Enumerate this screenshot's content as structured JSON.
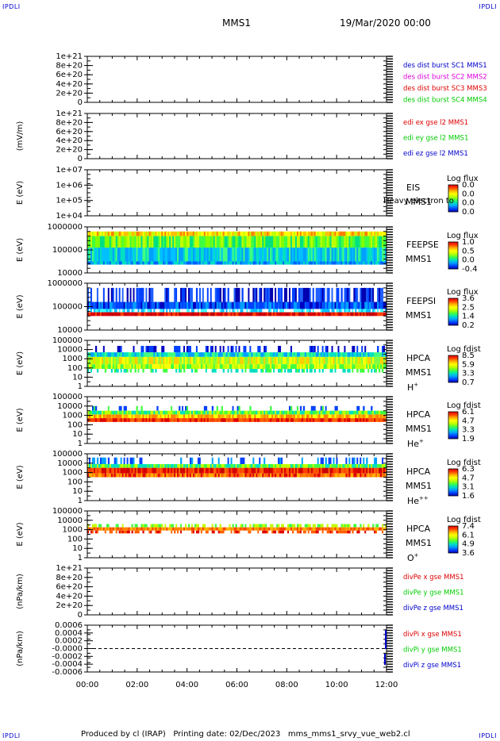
{
  "corner_label": "IPDLI",
  "header": {
    "spacecraft": "MMS1",
    "datetime": "19/Mar/2020 00:00"
  },
  "footer": {
    "text": "Produced by cl (IRAP)   Printing date: 02/Dec/2023   mms_mms1_srvy_vue_web2.cl"
  },
  "colors": {
    "red": "#dd0000",
    "green": "#00cc00",
    "blue": "#0000cc",
    "magenta": "#dd00dd",
    "spectrogram_bg": "#0030e0"
  },
  "chart_data": [
    {
      "id": "des",
      "type": "line",
      "ylabel": "",
      "yticks": [
        "1e+21",
        "8e+20",
        "6e+20",
        "4e+20",
        "2e+20",
        "0"
      ],
      "ylim": [
        0,
        1e+21
      ],
      "x_range": [
        "00:00",
        "12:00"
      ],
      "series": [
        {
          "name": "des dist burst SC1 MMS1",
          "color": "#0000cc",
          "values": []
        },
        {
          "name": "des dist burst SC2 MMS2",
          "color": "#dd00dd",
          "values": []
        },
        {
          "name": "des dist burst SC3 MMS3",
          "color": "#dd0000",
          "values": []
        },
        {
          "name": "des dist burst SC4 MMS4",
          "color": "#00cc00",
          "values": []
        }
      ]
    },
    {
      "id": "edi",
      "type": "line",
      "ylabel": "(mV/m)",
      "yticks": [
        "1e+21",
        "8e+20",
        "6e+20",
        "4e+20",
        "2e+20",
        "0"
      ],
      "ylim": [
        0,
        1e+21
      ],
      "x_range": [
        "00:00",
        "12:00"
      ],
      "series": [
        {
          "name": "edi ex gse l2 MMS1",
          "color": "#dd0000",
          "values": []
        },
        {
          "name": "edi ey gse l2 MMS1",
          "color": "#00cc00",
          "values": []
        },
        {
          "name": "edi ez gse l2 MMS1",
          "color": "#0000cc",
          "values": []
        }
      ]
    },
    {
      "id": "eis",
      "type": "heatmap",
      "ylabel": "E (eV)",
      "yticks": [
        "1e+07",
        "1e+06",
        "1e+05",
        "1e+04"
      ],
      "ylim": [
        10000.0,
        10000000.0
      ],
      "x_range": [
        "00:00",
        "12:00"
      ],
      "instrument": "EIS",
      "instrument_sub": "MMS1",
      "note": "Heavy electron to",
      "colorbar_title": "Log flux",
      "colorbar_ticks": [
        "0.0",
        "0.0",
        "0.0",
        "0.0"
      ],
      "values": []
    },
    {
      "id": "feepse",
      "type": "heatmap",
      "ylabel": "E (eV)",
      "yticks": [
        "1000000",
        "100000",
        "10000"
      ],
      "ylim": [
        10000.0,
        1000000.0
      ],
      "x_range": [
        "00:00",
        "12:00"
      ],
      "instrument": "FEEPSE",
      "instrument_sub": "MMS1",
      "colorbar_title": "Log flux",
      "colorbar_ticks": [
        "1.0",
        "0.5",
        "0.0",
        "-0.4"
      ]
    },
    {
      "id": "feepsi",
      "type": "heatmap",
      "ylabel": "E (eV)",
      "yticks": [
        "1000000",
        "100000",
        "10000"
      ],
      "ylim": [
        10000.0,
        1000000.0
      ],
      "x_range": [
        "00:00",
        "12:00"
      ],
      "instrument": "FEEPSI",
      "instrument_sub": "MMS1",
      "colorbar_title": "Log flux",
      "colorbar_ticks": [
        "3.6",
        "2.5",
        "1.4",
        "0.2"
      ]
    },
    {
      "id": "hpca_h",
      "type": "heatmap",
      "ylabel": "E (eV)",
      "yticks": [
        "100000",
        "10000",
        "1000",
        "100",
        "10",
        "1"
      ],
      "ylim": [
        1,
        100000.0
      ],
      "x_range": [
        "00:00",
        "12:00"
      ],
      "instrument": "HPCA",
      "instrument_sub": "MMS1",
      "species": "H",
      "species_sup": "+",
      "colorbar_title": "Log fdist",
      "colorbar_ticks": [
        "8.5",
        "5.9",
        "3.3",
        "0.7"
      ]
    },
    {
      "id": "hpca_he",
      "type": "heatmap",
      "ylabel": "E (eV)",
      "yticks": [
        "100000",
        "10000",
        "1000",
        "100",
        "10",
        "1"
      ],
      "ylim": [
        1,
        100000.0
      ],
      "x_range": [
        "00:00",
        "12:00"
      ],
      "instrument": "HPCA",
      "instrument_sub": "MMS1",
      "species": "He",
      "species_sup": "+",
      "colorbar_title": "Log fdist",
      "colorbar_ticks": [
        "6.1",
        "4.7",
        "3.3",
        "1.9"
      ]
    },
    {
      "id": "hpca_hepp",
      "type": "heatmap",
      "ylabel": "E (eV)",
      "yticks": [
        "100000",
        "10000",
        "1000",
        "100",
        "10",
        "1"
      ],
      "ylim": [
        1,
        100000.0
      ],
      "x_range": [
        "00:00",
        "12:00"
      ],
      "instrument": "HPCA",
      "instrument_sub": "MMS1",
      "species": "He",
      "species_sup": "++",
      "colorbar_title": "Log fdist",
      "colorbar_ticks": [
        "6.3",
        "4.7",
        "3.1",
        "1.6"
      ]
    },
    {
      "id": "hpca_o",
      "type": "heatmap",
      "ylabel": "E (eV)",
      "yticks": [
        "100000",
        "10000",
        "1000",
        "100",
        "10",
        "1"
      ],
      "ylim": [
        1,
        100000.0
      ],
      "x_range": [
        "00:00",
        "12:00"
      ],
      "instrument": "HPCA",
      "instrument_sub": "MMS1",
      "species": "O",
      "species_sup": "+",
      "colorbar_title": "Log fdist",
      "colorbar_ticks": [
        "7.4",
        "6.1",
        "4.9",
        "3.6"
      ]
    },
    {
      "id": "divpe",
      "type": "line",
      "ylabel": "(nPa/km)",
      "yticks": [
        "1e+21",
        "8e+20",
        "6e+20",
        "4e+20",
        "2e+20",
        "0"
      ],
      "ylim": [
        0,
        1e+21
      ],
      "x_range": [
        "00:00",
        "12:00"
      ],
      "series": [
        {
          "name": "divPe x gse MMS1",
          "color": "#dd0000",
          "values": []
        },
        {
          "name": "divPe y gse MMS1",
          "color": "#00cc00",
          "values": []
        },
        {
          "name": "divPe z gse MMS1",
          "color": "#0000cc",
          "values": []
        }
      ]
    },
    {
      "id": "divpi",
      "type": "line",
      "ylabel": "(nPa/km)",
      "yticks": [
        "0.0006",
        "0.0004",
        "0.0002",
        "-0.0000",
        "-0.0002",
        "-0.0004",
        "-0.0006"
      ],
      "ylim": [
        -0.0006,
        0.0006
      ],
      "x_range": [
        "00:00",
        "12:00"
      ],
      "series": [
        {
          "name": "divPi x gse MMS1",
          "color": "#dd0000",
          "values": []
        },
        {
          "name": "divPi y gse MMS1",
          "color": "#00cc00",
          "values": []
        },
        {
          "name": "divPi z gse MMS1",
          "color": "#0000cc",
          "values": []
        }
      ]
    }
  ],
  "x_axis": {
    "tick_labels": [
      "00:00",
      "02:00",
      "04:00",
      "06:00",
      "08:00",
      "10:00",
      "12:00"
    ]
  }
}
